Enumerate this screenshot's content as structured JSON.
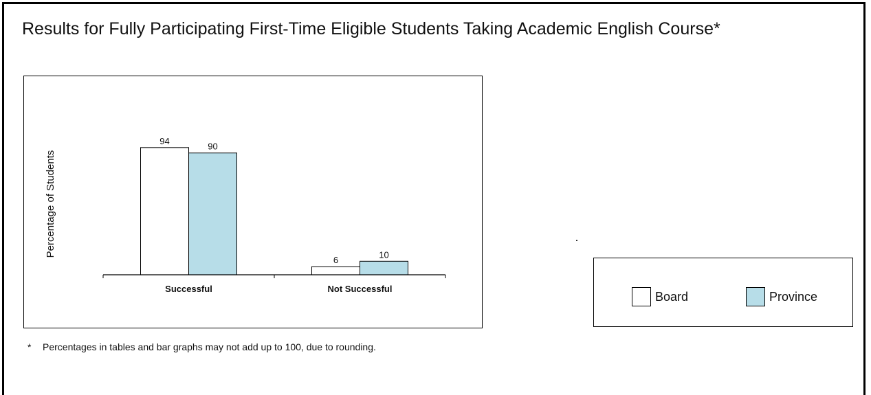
{
  "chart_data": {
    "type": "bar",
    "title": "Results for Fully Participating First-Time Eligible Students Taking Academic English Course*",
    "xlabel": "",
    "ylabel": "Percentage of Students",
    "ylim": [
      0,
      100
    ],
    "grid": false,
    "categories": [
      "Successful",
      "Not Successful"
    ],
    "series": [
      {
        "name": "Board",
        "values": [
          94,
          6
        ],
        "color": "#ffffff"
      },
      {
        "name": "Province",
        "values": [
          90,
          10
        ],
        "color": "#b7dde8"
      }
    ],
    "legend_position": "right",
    "footnote_marker": "*",
    "footnote": "Percentages in tables and bar graphs may not add up to 100, due to rounding."
  }
}
